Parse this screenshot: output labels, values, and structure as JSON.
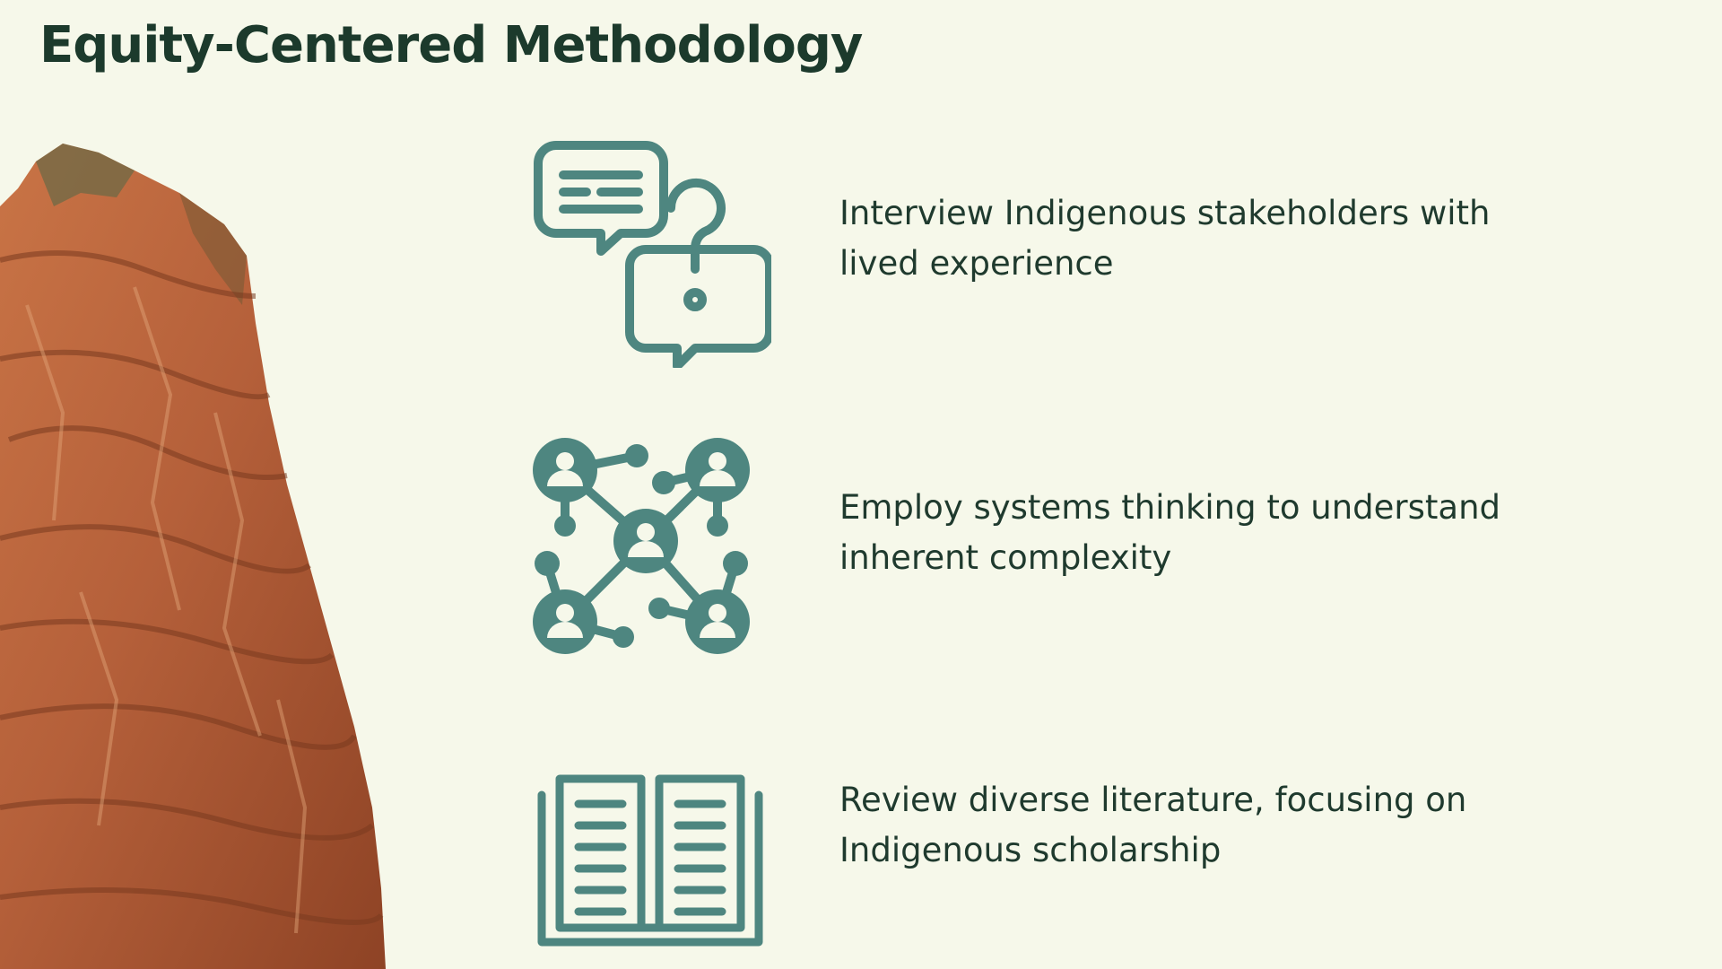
{
  "slide": {
    "title": "Equity-Centered Methodology"
  },
  "colors": {
    "background": "#f6f8ea",
    "title": "#1c3a2c",
    "text": "#1f3a2e",
    "icon": "#4e8680",
    "rock": "#b8643a"
  },
  "points": [
    {
      "icon": "speech-bubbles-question-icon",
      "text": "Interview Indigenous stakeholders with lived experience"
    },
    {
      "icon": "people-network-icon",
      "text": "Employ systems thinking to understand inherent complexity"
    },
    {
      "icon": "open-book-icon",
      "text": "Review diverse literature, focusing on Indigenous scholarship"
    }
  ],
  "decor": {
    "image": "red-rock-cliff"
  }
}
